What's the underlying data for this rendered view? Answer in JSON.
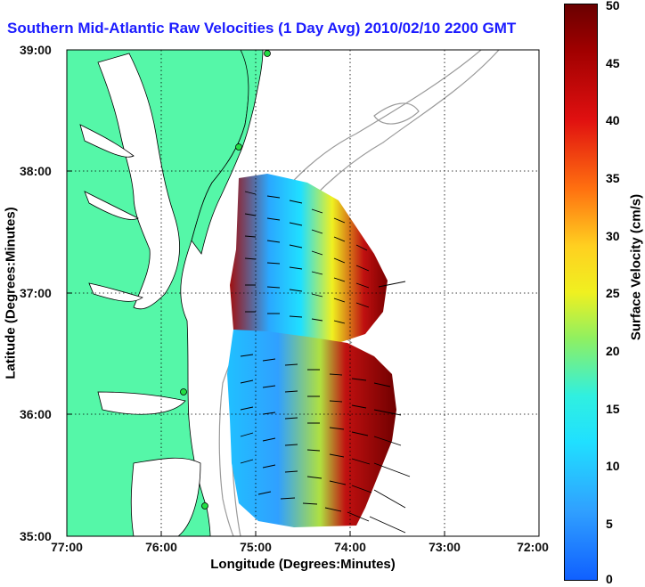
{
  "title": "Southern Mid-Atlantic Raw Velocities (1 Day Avg) 2010/02/10 2200 GMT",
  "x_axis": {
    "label": "Longitude (Degrees:Minutes)",
    "ticks": [
      "77:00",
      "76:00",
      "75:00",
      "74:00",
      "73:00",
      "72:00"
    ]
  },
  "y_axis": {
    "label": "Latitude (Degrees:Minutes)",
    "ticks": [
      "39:00",
      "38:00",
      "37:00",
      "36:00",
      "35:00"
    ]
  },
  "colorbar": {
    "label": "Surface Velocity (cm/s)",
    "ticks": [
      "50",
      "45",
      "40",
      "35",
      "30",
      "25",
      "20",
      "15",
      "10",
      "5",
      "0"
    ],
    "range": [
      0,
      50
    ]
  },
  "colors": {
    "land": "#55f7a8",
    "title": "#1c1cff",
    "grid": "#000000",
    "isobath": "#9a9a9a"
  }
}
